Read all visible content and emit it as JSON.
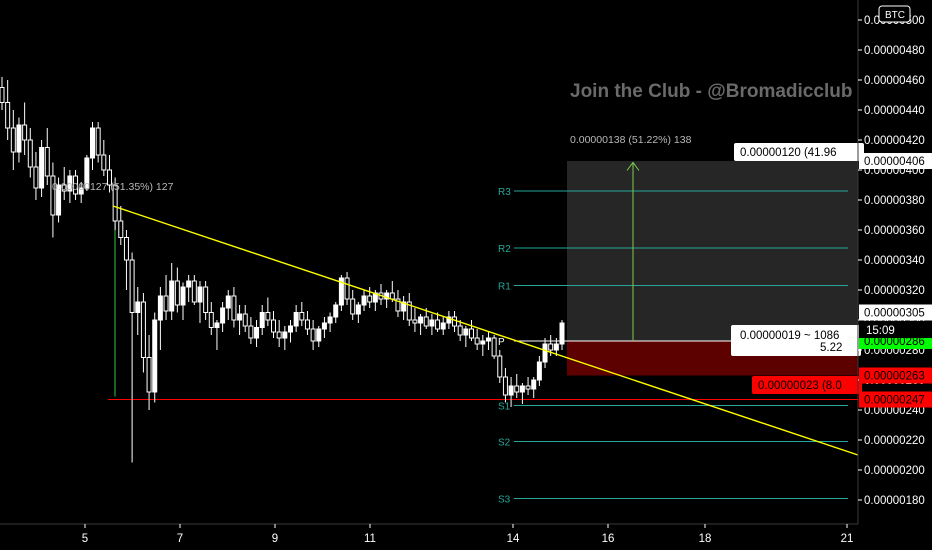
{
  "currency_badge": "BTC",
  "watermark": "Join the Club - @Bromadicclub",
  "chart_data": {
    "type": "candlestick",
    "y_ticks": [
      "0.00000500",
      "0.00000480",
      "0.00000460",
      "0.00000440",
      "0.00000420",
      "0.00000400",
      "0.00000380",
      "0.00000360",
      "0.00000340",
      "0.00000320",
      "0.00000300",
      "0.00000280",
      "0.00000260",
      "0.00000240",
      "0.00000220",
      "0.00000200",
      "0.00000180"
    ],
    "ylim": [
      1.7e-06,
      5.08e-06
    ],
    "x_ticks": [
      "5",
      "7",
      "9",
      "11",
      "14",
      "16",
      "18",
      "21"
    ],
    "candles": [
      [
        4.55e-06,
        4.62e-06,
        4.4e-06,
        4.45e-06
      ],
      [
        4.45e-06,
        4.6e-06,
        4.2e-06,
        4.28e-06
      ],
      [
        4.28e-06,
        4.4e-06,
        4e-06,
        4.12e-06
      ],
      [
        4.12e-06,
        4.35e-06,
        4.05e-06,
        4.3e-06
      ],
      [
        4.3e-06,
        4.45e-06,
        4.1e-06,
        4.2e-06
      ],
      [
        4.2e-06,
        4.28e-06,
        3.95e-06,
        4.02e-06
      ],
      [
        4.02e-06,
        4.12e-06,
        3.8e-06,
        3.88e-06
      ],
      [
        3.88e-06,
        4.2e-06,
        3.82e-06,
        4.15e-06
      ],
      [
        4.15e-06,
        4.28e-06,
        3.9e-06,
        3.96e-06
      ],
      [
        3.96e-06,
        4.05e-06,
        3.55e-06,
        3.7e-06
      ],
      [
        3.7e-06,
        3.95e-06,
        3.65e-06,
        3.9e-06
      ],
      [
        3.9e-06,
        4.02e-06,
        3.8e-06,
        3.86e-06
      ],
      [
        3.86e-06,
        4e-06,
        3.78e-06,
        3.96e-06
      ],
      [
        3.96e-06,
        4e-06,
        3.8e-06,
        3.84e-06
      ],
      [
        3.84e-06,
        3.92e-06,
        3.78e-06,
        3.88e-06
      ],
      [
        3.88e-06,
        4.1e-06,
        3.86e-06,
        4.08e-06
      ],
      [
        4.08e-06,
        4.32e-06,
        4e-06,
        4.28e-06
      ],
      [
        4.28e-06,
        4.32e-06,
        4.05e-06,
        4.1e-06
      ],
      [
        4.1e-06,
        4.2e-06,
        3.96e-06,
        4e-06
      ],
      [
        4e-06,
        4.1e-06,
        3.85e-06,
        3.9e-06
      ],
      [
        3.9e-06,
        3.95e-06,
        3.6e-06,
        3.66e-06
      ],
      [
        3.66e-06,
        3.76e-06,
        3.5e-06,
        3.55e-06
      ],
      [
        3.55e-06,
        3.6e-06,
        3.2e-06,
        3.4e-06
      ],
      [
        3.4e-06,
        3.45e-06,
        2.05e-06,
        3.05e-06
      ],
      [
        3.05e-06,
        3.22e-06,
        2.9e-06,
        3.12e-06
      ],
      [
        3.12e-06,
        3.18e-06,
        2.65e-06,
        2.75e-06
      ],
      [
        2.75e-06,
        2.9e-06,
        2.4e-06,
        2.52e-06
      ],
      [
        2.52e-06,
        3.05e-06,
        2.45e-06,
        3e-06
      ],
      [
        3e-06,
        3.22e-06,
        2.8e-06,
        3.16e-06
      ],
      [
        3.16e-06,
        3.3e-06,
        3e-06,
        3.06e-06
      ],
      [
        3.06e-06,
        3.38e-06,
        3e-06,
        3.26e-06
      ],
      [
        3.26e-06,
        3.35e-06,
        3.05e-06,
        3.1e-06
      ],
      [
        3.1e-06,
        3.25e-06,
        3e-06,
        3.22e-06
      ],
      [
        3.22e-06,
        3.3e-06,
        3.12e-06,
        3.26e-06
      ],
      [
        3.26e-06,
        3.3e-06,
        3.1e-06,
        3.12e-06
      ],
      [
        3.12e-06,
        3.26e-06,
        2.98e-06,
        3.22e-06
      ],
      [
        3.22e-06,
        3.26e-06,
        3e-06,
        3.05e-06
      ],
      [
        3.05e-06,
        3.12e-06,
        2.9e-06,
        2.95e-06
      ],
      [
        2.95e-06,
        3e-06,
        2.8e-06,
        2.98e-06
      ],
      [
        2.98e-06,
        3.12e-06,
        2.92e-06,
        3.08e-06
      ],
      [
        3.08e-06,
        3.2e-06,
        3e-06,
        3.16e-06
      ],
      [
        3.16e-06,
        3.22e-06,
        2.95e-06,
        3e-06
      ],
      [
        3e-06,
        3.1e-06,
        2.9e-06,
        3.04e-06
      ],
      [
        3.04e-06,
        3.1e-06,
        2.92e-06,
        2.96e-06
      ],
      [
        2.96e-06,
        3.02e-06,
        2.84e-06,
        2.88e-06
      ],
      [
        2.88e-06,
        3e-06,
        2.82e-06,
        2.95e-06
      ],
      [
        2.95e-06,
        3.1e-06,
        2.9e-06,
        3.05e-06
      ],
      [
        3.05e-06,
        3.15e-06,
        2.96e-06,
        3e-06
      ],
      [
        3e-06,
        3.06e-06,
        2.88e-06,
        2.92e-06
      ],
      [
        2.92e-06,
        3e-06,
        2.82e-06,
        2.88e-06
      ],
      [
        2.88e-06,
        2.96e-06,
        2.8e-06,
        2.92e-06
      ],
      [
        2.92e-06,
        3e-06,
        2.85e-06,
        2.96e-06
      ],
      [
        2.96e-06,
        3.1e-06,
        2.92e-06,
        3.05e-06
      ],
      [
        3.05e-06,
        3.12e-06,
        2.96e-06,
        3e-06
      ],
      [
        3e-06,
        3.06e-06,
        2.9e-06,
        2.94e-06
      ],
      [
        2.94e-06,
        3e-06,
        2.8e-06,
        2.86e-06
      ],
      [
        2.86e-06,
        2.96e-06,
        2.82e-06,
        2.94e-06
      ],
      [
        2.94e-06,
        3.02e-06,
        2.88e-06,
        2.98e-06
      ],
      [
        2.98e-06,
        3.05e-06,
        2.92e-06,
        3.02e-06
      ],
      [
        3.02e-06,
        3.12e-06,
        2.98e-06,
        3.1e-06
      ],
      [
        3.1e-06,
        3.3e-06,
        3.06e-06,
        3.28e-06
      ],
      [
        3.28e-06,
        3.32e-06,
        3.1e-06,
        3.14e-06
      ],
      [
        3.14e-06,
        3.2e-06,
        3e-06,
        3.04e-06
      ],
      [
        3.04e-06,
        3.12e-06,
        2.98e-06,
        3.1e-06
      ],
      [
        3.1e-06,
        3.2e-06,
        3.06e-06,
        3.16e-06
      ],
      [
        3.16e-06,
        3.22e-06,
        3.08e-06,
        3.12e-06
      ],
      [
        3.12e-06,
        3.2e-06,
        3.06e-06,
        3.18e-06
      ],
      [
        3.18e-06,
        3.24e-06,
        3.1e-06,
        3.14e-06
      ],
      [
        3.14e-06,
        3.2e-06,
        3.08e-06,
        3.18e-06
      ],
      [
        3.18e-06,
        3.26e-06,
        3.12e-06,
        3.14e-06
      ],
      [
        3.14e-06,
        3.2e-06,
        3.02e-06,
        3.06e-06
      ],
      [
        3.06e-06,
        3.16e-06,
        3e-06,
        3.12e-06
      ],
      [
        3.12e-06,
        3.18e-06,
        2.96e-06,
        3e-06
      ],
      [
        3e-06,
        3.08e-06,
        2.92e-06,
        2.98e-06
      ],
      [
        2.98e-06,
        3.04e-06,
        2.9e-06,
        3.02e-06
      ],
      [
        3.02e-06,
        3.08e-06,
        2.94e-06,
        2.96e-06
      ],
      [
        2.96e-06,
        3.04e-06,
        2.9e-06,
        3e-06
      ],
      [
        3e-06,
        3.05e-06,
        2.92e-06,
        2.94e-06
      ],
      [
        2.94e-06,
        3.02e-06,
        2.9e-06,
        2.98e-06
      ],
      [
        2.98e-06,
        3.06e-06,
        2.94e-06,
        3.02e-06
      ],
      [
        3.02e-06,
        3.06e-06,
        2.92e-06,
        2.96e-06
      ],
      [
        2.96e-06,
        3e-06,
        2.86e-06,
        2.9e-06
      ],
      [
        2.9e-06,
        2.96e-06,
        2.82e-06,
        2.94e-06
      ],
      [
        2.94e-06,
        3e-06,
        2.86e-06,
        2.88e-06
      ],
      [
        2.88e-06,
        2.94e-06,
        2.8e-06,
        2.84e-06
      ],
      [
        2.84e-06,
        2.9e-06,
        2.76e-06,
        2.86e-06
      ],
      [
        2.86e-06,
        2.92e-06,
        2.8e-06,
        2.88e-06
      ],
      [
        2.88e-06,
        2.9e-06,
        2.74e-06,
        2.76e-06
      ],
      [
        2.76e-06,
        2.8e-06,
        2.58e-06,
        2.62e-06
      ],
      [
        2.62e-06,
        2.68e-06,
        2.45e-06,
        2.5e-06
      ],
      [
        2.5e-06,
        2.62e-06,
        2.42e-06,
        2.56e-06
      ],
      [
        2.56e-06,
        2.64e-06,
        2.48e-06,
        2.52e-06
      ],
      [
        2.52e-06,
        2.58e-06,
        2.44e-06,
        2.56e-06
      ],
      [
        2.56e-06,
        2.62e-06,
        2.5e-06,
        2.54e-06
      ],
      [
        2.54e-06,
        2.62e-06,
        2.48e-06,
        2.6e-06
      ],
      [
        2.6e-06,
        2.76e-06,
        2.56e-06,
        2.72e-06
      ],
      [
        2.72e-06,
        2.88e-06,
        2.68e-06,
        2.84e-06
      ],
      [
        2.84e-06,
        2.9e-06,
        2.76e-06,
        2.8e-06
      ],
      [
        2.8e-06,
        2.88e-06,
        2.76e-06,
        2.84e-06
      ],
      [
        2.84e-06,
        3e-06,
        2.8e-06,
        2.98e-06
      ]
    ],
    "pivot_levels": [
      {
        "label": "R3",
        "value": 3.86e-06
      },
      {
        "label": "R2",
        "value": 3.48e-06
      },
      {
        "label": "R1",
        "value": 3.23e-06
      },
      {
        "label": "P",
        "value": 2.86e-06
      },
      {
        "label": "S1",
        "value": 2.43e-06
      },
      {
        "label": "S2",
        "value": 2.19e-06
      },
      {
        "label": "S3",
        "value": 1.81e-06
      }
    ],
    "support_line_value": 2.47e-06,
    "annotations": {
      "left_measure": "0.00000127 (51.35%) 127",
      "target_measure": "0.00000138 (51.22%) 138",
      "target_box_label": "0.00000120 (41.96",
      "entry_box_line1": "0.00000019 ~ 1086",
      "entry_box_line2": "5.22",
      "stop_box_label": "0.00000023 (8.0"
    },
    "price_tags": [
      {
        "value": 4.06e-06,
        "label": "0.00000406",
        "style": "light"
      },
      {
        "value": 3.05e-06,
        "label": "0.00000305",
        "style": "light"
      },
      {
        "value": 2.86e-06,
        "label": "0.00000286",
        "style": "green"
      },
      {
        "value": 2.63e-06,
        "label": "0.00000263",
        "style": "red"
      },
      {
        "value": 2.47e-06,
        "label": "0.00000247",
        "style": "red"
      }
    ],
    "countdown": "15:09",
    "colors": {
      "candle": "#ffffff",
      "trendline": "#ffff00",
      "pivot": "#26a69a",
      "support": "#ff0000",
      "target_zone": "#262626",
      "stop_zone": "#5c0000",
      "current_price": "#00ff00"
    }
  }
}
